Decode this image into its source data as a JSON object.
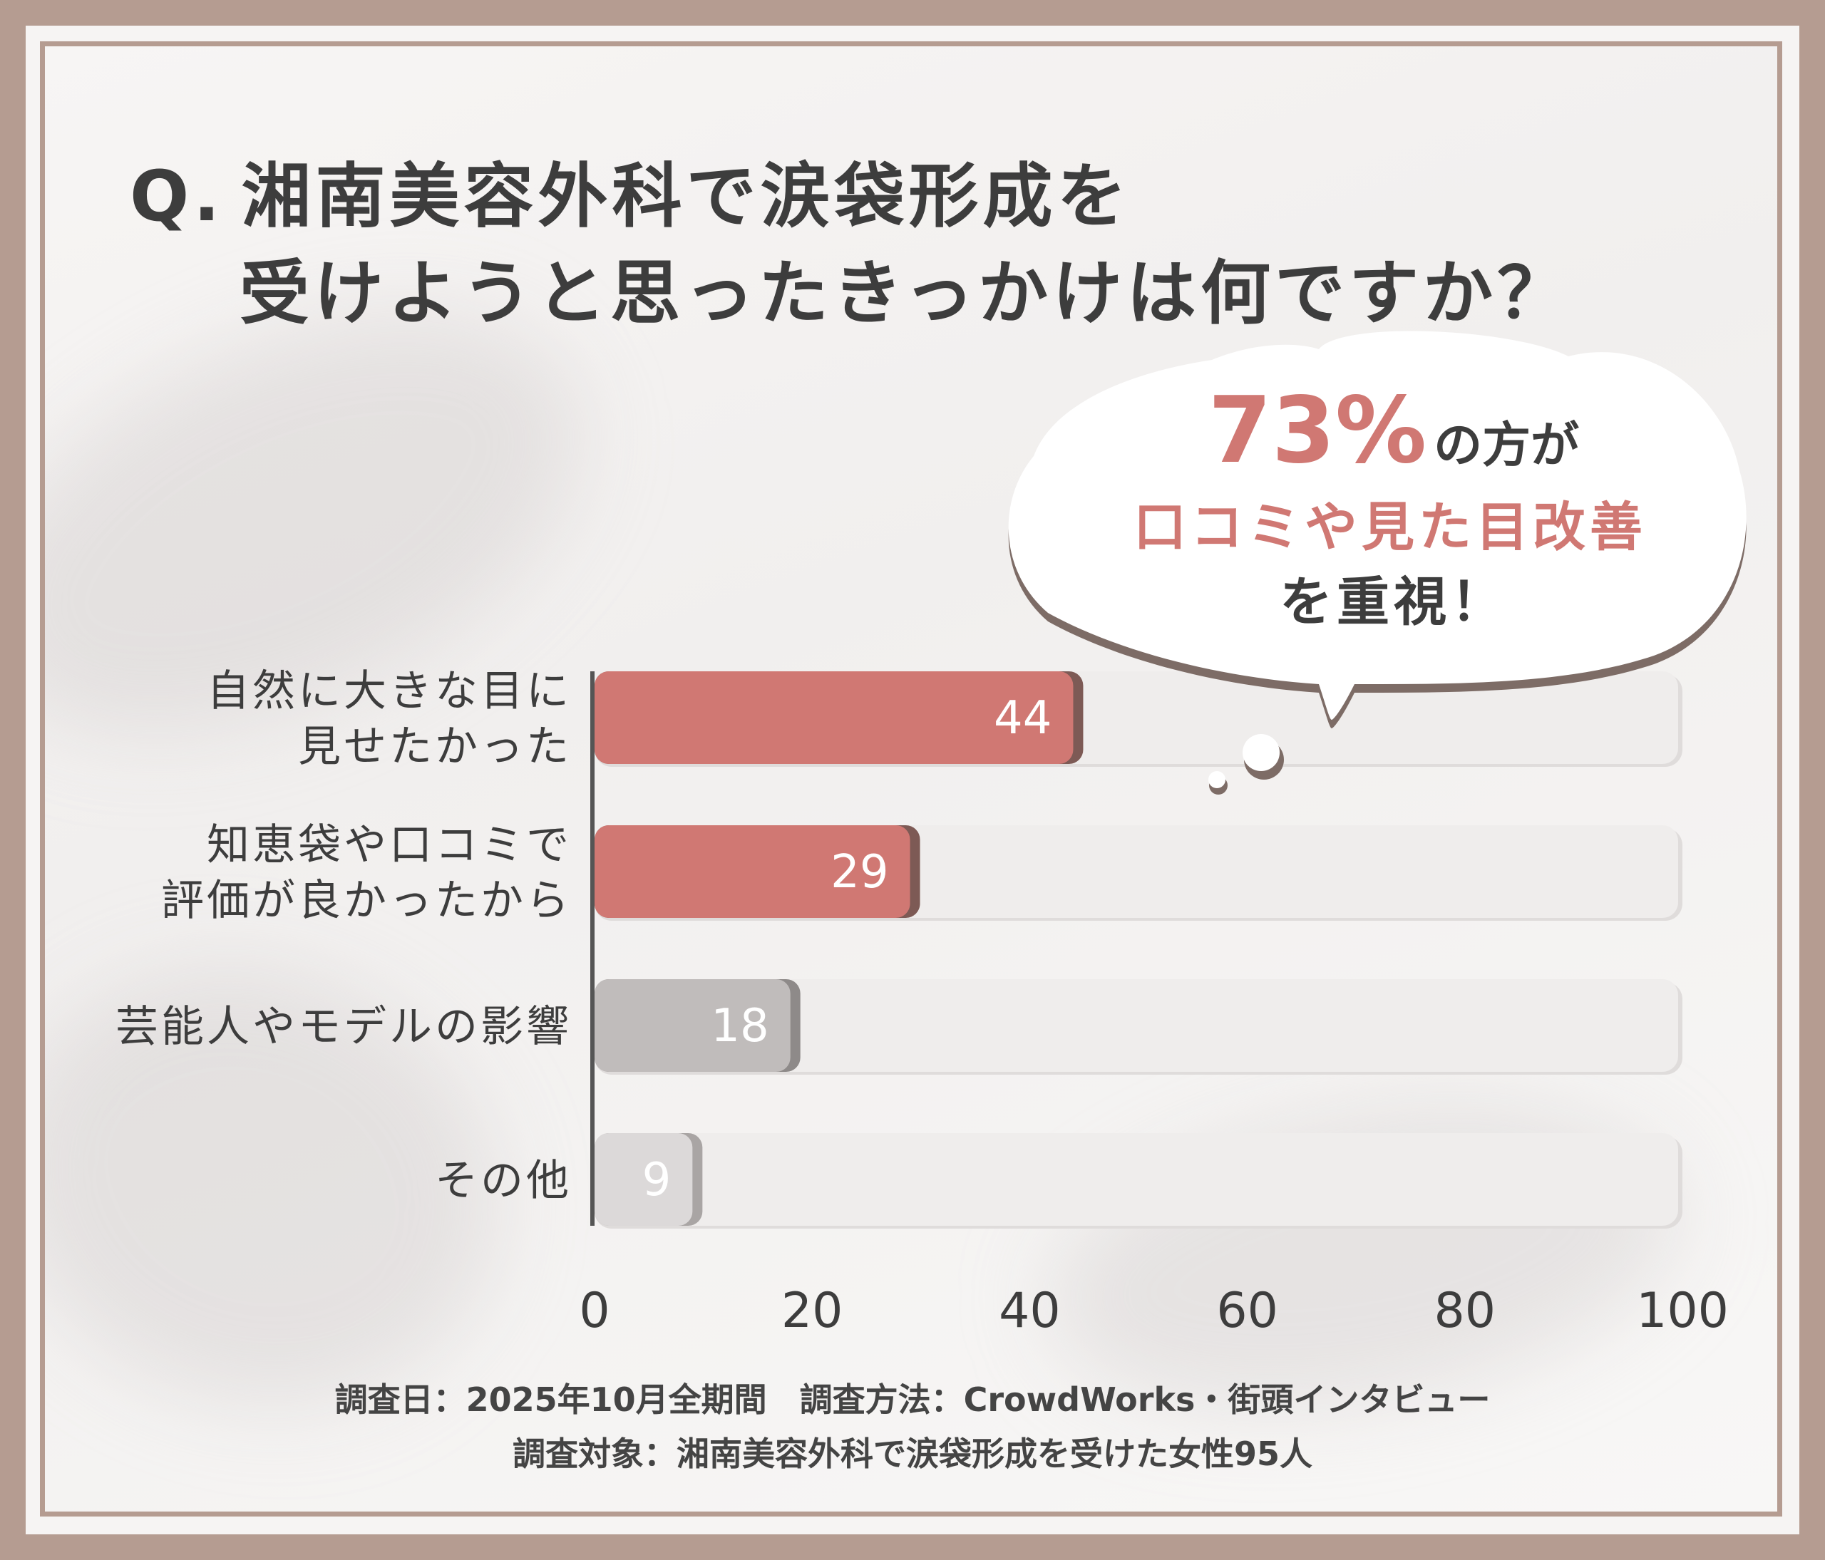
{
  "question": {
    "prefix": "Q.",
    "line1": "湘南美容外科で涙袋形成を",
    "line2": "受けようと思ったきっかけは何ですか？"
  },
  "callout": {
    "percent": "73%",
    "line1_rest": "の方が",
    "line2": "口コミや見た目改善",
    "line3": "を重視！"
  },
  "colors": {
    "accent": "#d07873",
    "gray_bar": "#c0bcbb",
    "light_bar": "#dcd9d9",
    "track": "#efedec",
    "frame": "#b59c91",
    "text": "#3d3d3d"
  },
  "chart_data": {
    "type": "bar",
    "orientation": "horizontal",
    "categories": [
      [
        "自然に大きな目に",
        "見せたかった"
      ],
      [
        "知恵袋や口コミで",
        "評価が良かったから"
      ],
      [
        "芸能人やモデルの影響"
      ],
      [
        "その他"
      ]
    ],
    "values": [
      44,
      29,
      18,
      9
    ],
    "value_labels": [
      "44",
      "29",
      "18",
      "9"
    ],
    "xlim": [
      0,
      100
    ],
    "xticks": [
      "0",
      "20",
      "40",
      "60",
      "80",
      "100"
    ],
    "grid": false,
    "legend": "none"
  },
  "footnote": {
    "line1": "調査日：2025年10月全期間　調査方法：CrowdWorks・街頭インタビュー",
    "line2": "調査対象：湘南美容外科で涙袋形成を受けた女性95人"
  }
}
